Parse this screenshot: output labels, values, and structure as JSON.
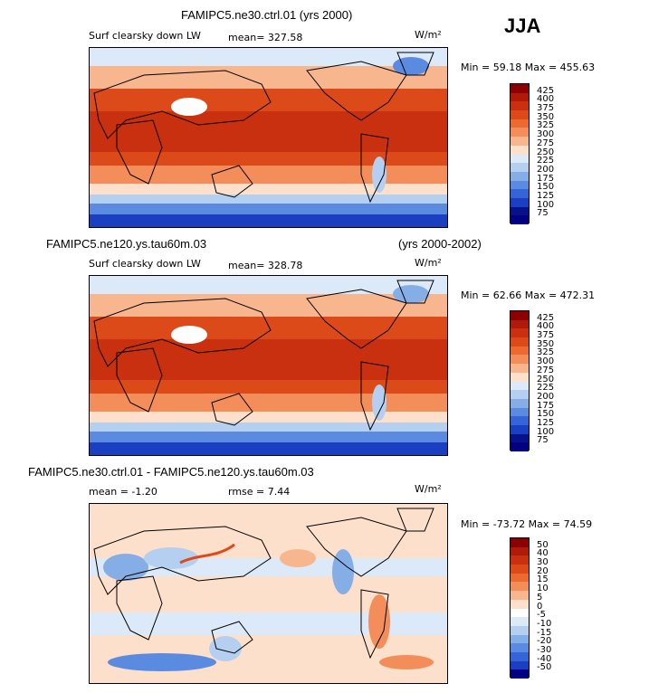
{
  "season": "JJA",
  "panels": [
    {
      "title": "FAMIPC5.ne30.ctrl.01 (yrs 2000)",
      "title_right": "",
      "left_label": "Surf clearsky down LW",
      "stat1": "mean= 327.58",
      "stat2": "",
      "units": "W/m²",
      "minmax": "Min =  59.18 Max = 455.63",
      "scale": "abs",
      "levels": [
        "425",
        "400",
        "375",
        "350",
        "325",
        "300",
        "275",
        "250",
        "225",
        "200",
        "175",
        "150",
        "125",
        "100",
        "75"
      ]
    },
    {
      "title": "FAMIPC5.ne120.ys.tau60m.03",
      "title_right": "(yrs 2000-2002)",
      "left_label": "Surf clearsky down LW",
      "stat1": "mean= 328.78",
      "stat2": "",
      "units": "W/m²",
      "minmax": "Min =  62.66 Max = 472.31",
      "scale": "abs",
      "levels": [
        "425",
        "400",
        "375",
        "350",
        "325",
        "300",
        "275",
        "250",
        "225",
        "200",
        "175",
        "150",
        "125",
        "100",
        "75"
      ]
    },
    {
      "title": "FAMIPC5.ne30.ctrl.01 - FAMIPC5.ne120.ys.tau60m.03",
      "title_right": "",
      "left_label": "mean =  -1.20",
      "stat1": "rmse =   7.44",
      "stat2": "",
      "units": "W/m²",
      "minmax": "Min = -73.72 Max =  74.59",
      "scale": "diff",
      "levels": [
        "50",
        "40",
        "30",
        "20",
        "15",
        "10",
        "5",
        "0",
        "-5",
        "-10",
        "-15",
        "-20",
        "-30",
        "-40",
        "-50"
      ]
    }
  ],
  "colors": {
    "abs": [
      "#8b0000",
      "#b01a08",
      "#c8300f",
      "#dc4a1a",
      "#ea6a30",
      "#f38e5a",
      "#f8b68f",
      "#fde0cc",
      "#dbe9f8",
      "#b4cff0",
      "#86aee6",
      "#5a8be0",
      "#3563d8",
      "#1a3fc0",
      "#07128a",
      "#000080"
    ],
    "diff": [
      "#8b0000",
      "#b01a08",
      "#c8300f",
      "#dc4a1a",
      "#ea6a30",
      "#f38e5a",
      "#f8b68f",
      "#fde0cc",
      "#ffffff",
      "#dbe9f8",
      "#b4cff0",
      "#86aee6",
      "#5a8be0",
      "#3563d8",
      "#1a3fc0",
      "#000080"
    ]
  },
  "chart_data": [
    {
      "type": "heatmap",
      "title": "FAMIPC5.ne30.ctrl.01 (yrs 2000)",
      "variable": "Surf clearsky down LW",
      "units": "W/m2",
      "mean": 327.58,
      "min": 59.18,
      "max": 455.63,
      "colorbar_levels": [
        75,
        100,
        125,
        150,
        175,
        200,
        225,
        250,
        275,
        300,
        325,
        350,
        375,
        400,
        425
      ]
    },
    {
      "type": "heatmap",
      "title": "FAMIPC5.ne120.ys.tau60m.03 (yrs 2000-2002)",
      "variable": "Surf clearsky down LW",
      "units": "W/m2",
      "mean": 328.78,
      "min": 62.66,
      "max": 472.31,
      "colorbar_levels": [
        75,
        100,
        125,
        150,
        175,
        200,
        225,
        250,
        275,
        300,
        325,
        350,
        375,
        400,
        425
      ]
    },
    {
      "type": "heatmap",
      "title": "FAMIPC5.ne30.ctrl.01 - FAMIPC5.ne120.ys.tau60m.03",
      "units": "W/m2",
      "mean": -1.2,
      "rmse": 7.44,
      "min": -73.72,
      "max": 74.59,
      "colorbar_levels": [
        -50,
        -40,
        -30,
        -20,
        -15,
        -10,
        -5,
        0,
        5,
        10,
        15,
        20,
        30,
        40,
        50
      ]
    }
  ]
}
